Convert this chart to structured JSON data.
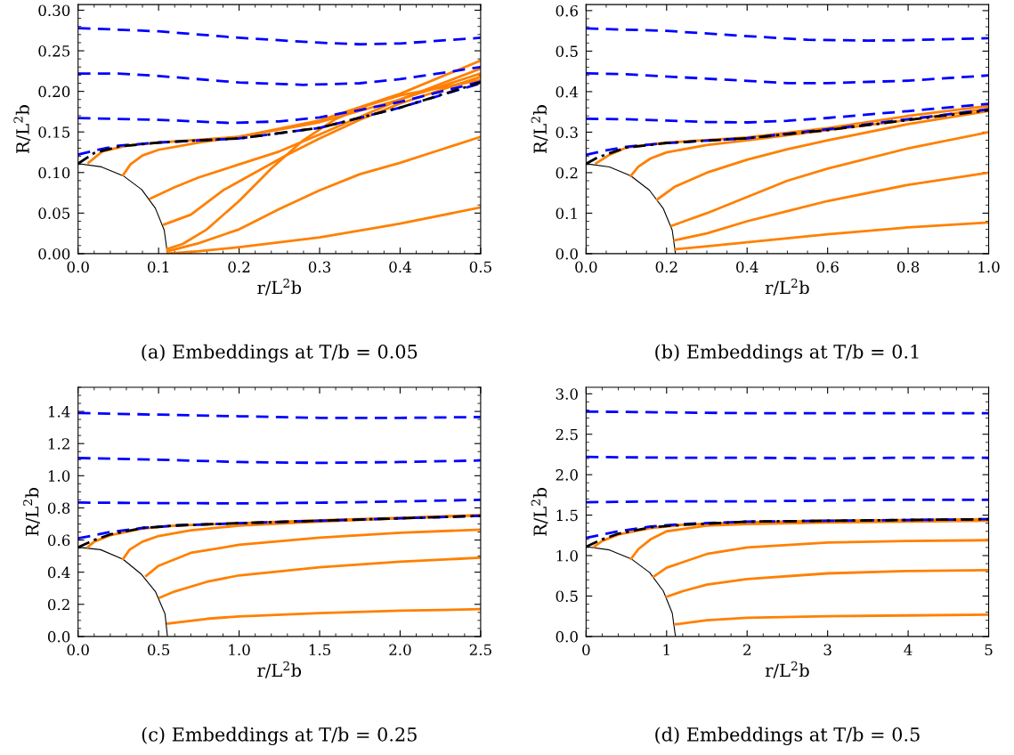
{
  "chart_data": [
    {
      "type": "line",
      "title": "(a) Embeddings at T/b = 0.05",
      "xlabel": "r/L$^{2}$b",
      "ylabel": "R/L$^{2}$b",
      "xlim": [
        0,
        0.5
      ],
      "ylim": [
        0,
        0.307
      ],
      "xticks": [
        {
          "value": 0,
          "label": "0.0"
        },
        {
          "value": 0.1,
          "label": "0.1"
        },
        {
          "value": 0.2,
          "label": "0.2"
        },
        {
          "value": 0.3,
          "label": "0.3"
        },
        {
          "value": 0.4,
          "label": "0.4"
        },
        {
          "value": 0.5,
          "label": "0.5"
        }
      ],
      "yticks": [
        {
          "value": 0,
          "label": "0.00"
        },
        {
          "value": 0.05,
          "label": "0.05"
        },
        {
          "value": 0.1,
          "label": "0.10"
        },
        {
          "value": 0.15,
          "label": "0.15"
        },
        {
          "value": 0.2,
          "label": "0.20"
        },
        {
          "value": 0.25,
          "label": "0.25"
        },
        {
          "value": 0.3,
          "label": "0.30"
        }
      ],
      "grid": false,
      "legend": false,
      "series": [
        {
          "color": "#000000",
          "line_style": "solid",
          "x": [
            0,
            0.029,
            0.056,
            0.079,
            0.096,
            0.107,
            0.111
          ],
          "values": [
            0.111,
            0.107,
            0.096,
            0.079,
            0.056,
            0.029,
            0
          ]
        },
        {
          "color": "#ff8000",
          "line_style": "solid",
          "x": [
            0.013,
            0.03,
            0.06,
            0.1,
            0.2,
            0.3,
            0.4,
            0.5
          ],
          "values": [
            0.112,
            0.126,
            0.133,
            0.137,
            0.144,
            0.162,
            0.19,
            0.222
          ]
        },
        {
          "color": "#ff8000",
          "line_style": "solid",
          "x": [
            0.056,
            0.065,
            0.08,
            0.1,
            0.15,
            0.2,
            0.3,
            0.4,
            0.5
          ],
          "values": [
            0.097,
            0.11,
            0.121,
            0.128,
            0.137,
            0.144,
            0.164,
            0.197,
            0.238
          ]
        },
        {
          "color": "#ff8000",
          "line_style": "solid",
          "x": [
            0.09,
            0.12,
            0.15,
            0.2,
            0.25,
            0.3,
            0.4,
            0.5
          ],
          "values": [
            0.068,
            0.082,
            0.094,
            0.11,
            0.126,
            0.147,
            0.19,
            0.228
          ]
        },
        {
          "color": "#ff8000",
          "line_style": "solid",
          "x": [
            0.107,
            0.14,
            0.18,
            0.22,
            0.26,
            0.3,
            0.35,
            0.4,
            0.5
          ],
          "values": [
            0.036,
            0.048,
            0.078,
            0.1,
            0.122,
            0.142,
            0.165,
            0.185,
            0.218
          ]
        },
        {
          "color": "#ff8000",
          "line_style": "solid",
          "x": [
            0.111,
            0.13,
            0.16,
            0.2,
            0.24,
            0.28,
            0.32,
            0.36,
            0.4,
            0.5
          ],
          "values": [
            0.006,
            0.012,
            0.03,
            0.065,
            0.105,
            0.14,
            0.166,
            0.183,
            0.195,
            0.214
          ]
        },
        {
          "color": "#ff8000",
          "line_style": "solid",
          "x": [
            0.111,
            0.15,
            0.2,
            0.25,
            0.3,
            0.35,
            0.4,
            0.45,
            0.5
          ],
          "values": [
            0.003,
            0.013,
            0.03,
            0.055,
            0.078,
            0.098,
            0.112,
            0.128,
            0.144
          ]
        },
        {
          "color": "#ff8000",
          "line_style": "solid",
          "x": [
            0.111,
            0.15,
            0.2,
            0.3,
            0.4,
            0.5
          ],
          "values": [
            0.0,
            0.003,
            0.008,
            0.02,
            0.037,
            0.057
          ]
        },
        {
          "color": "#0000ff",
          "line_style": "dashed",
          "x": [
            0,
            0.1,
            0.2,
            0.3,
            0.35,
            0.4,
            0.5
          ],
          "values": [
            0.278,
            0.274,
            0.266,
            0.26,
            0.258,
            0.259,
            0.266
          ]
        },
        {
          "color": "#0000ff",
          "line_style": "dashed",
          "x": [
            0,
            0.05,
            0.1,
            0.2,
            0.28,
            0.35,
            0.4,
            0.5
          ],
          "values": [
            0.222,
            0.222,
            0.219,
            0.211,
            0.208,
            0.21,
            0.215,
            0.23
          ]
        },
        {
          "color": "#0000ff",
          "line_style": "dashed",
          "x": [
            0,
            0.1,
            0.19,
            0.25,
            0.3,
            0.35,
            0.4,
            0.5
          ],
          "values": [
            0.167,
            0.165,
            0.161,
            0.163,
            0.168,
            0.177,
            0.187,
            0.212
          ]
        },
        {
          "color": "#0000ff",
          "line_style": "dashed",
          "x": [
            0,
            0.02,
            0.05,
            0.1,
            0.2,
            0.3,
            0.4,
            0.5
          ],
          "values": [
            0.122,
            0.127,
            0.133,
            0.137,
            0.142,
            0.155,
            0.18,
            0.21
          ]
        },
        {
          "color": "#000000",
          "line_style": "dashdot",
          "x": [
            0,
            0.02,
            0.05,
            0.1,
            0.2,
            0.3,
            0.4,
            0.5
          ],
          "values": [
            0.111,
            0.124,
            0.132,
            0.137,
            0.142,
            0.155,
            0.18,
            0.211
          ]
        }
      ]
    },
    {
      "type": "line",
      "title": "(b) Embeddings at T/b = 0.1",
      "xlabel": "r/L$^{2}$b",
      "ylabel": "R/L$^{2}$b",
      "xlim": [
        0,
        1.0
      ],
      "ylim": [
        0,
        0.615
      ],
      "xticks": [
        {
          "value": 0,
          "label": "0.0"
        },
        {
          "value": 0.2,
          "label": "0.2"
        },
        {
          "value": 0.4,
          "label": "0.4"
        },
        {
          "value": 0.6,
          "label": "0.6"
        },
        {
          "value": 0.8,
          "label": "0.8"
        },
        {
          "value": 1.0,
          "label": "1.0"
        }
      ],
      "yticks": [
        {
          "value": 0,
          "label": "0.0"
        },
        {
          "value": 0.1,
          "label": "0.1"
        },
        {
          "value": 0.2,
          "label": "0.2"
        },
        {
          "value": 0.3,
          "label": "0.3"
        },
        {
          "value": 0.4,
          "label": "0.4"
        },
        {
          "value": 0.5,
          "label": "0.5"
        },
        {
          "value": 0.6,
          "label": "0.6"
        }
      ],
      "grid": false,
      "legend": false,
      "series": [
        {
          "color": "#000000",
          "line_style": "solid",
          "x": [
            0,
            0.058,
            0.111,
            0.157,
            0.192,
            0.214,
            0.222
          ],
          "values": [
            0.222,
            0.214,
            0.192,
            0.157,
            0.111,
            0.058,
            0
          ]
        },
        {
          "color": "#ff8000",
          "line_style": "solid",
          "x": [
            0.025,
            0.06,
            0.1,
            0.2,
            0.4,
            0.6,
            0.8,
            1.0
          ],
          "values": [
            0.223,
            0.245,
            0.262,
            0.274,
            0.287,
            0.31,
            0.34,
            0.365
          ]
        },
        {
          "color": "#ff8000",
          "line_style": "solid",
          "x": [
            0.111,
            0.13,
            0.16,
            0.2,
            0.3,
            0.4,
            0.6,
            0.8,
            1.0
          ],
          "values": [
            0.192,
            0.215,
            0.235,
            0.25,
            0.268,
            0.28,
            0.305,
            0.33,
            0.358
          ]
        },
        {
          "color": "#ff8000",
          "line_style": "solid",
          "x": [
            0.177,
            0.22,
            0.3,
            0.4,
            0.5,
            0.6,
            0.8,
            1.0
          ],
          "values": [
            0.134,
            0.165,
            0.2,
            0.232,
            0.258,
            0.28,
            0.32,
            0.352
          ]
        },
        {
          "color": "#ff8000",
          "line_style": "solid",
          "x": [
            0.213,
            0.3,
            0.4,
            0.5,
            0.6,
            0.8,
            1.0
          ],
          "values": [
            0.069,
            0.1,
            0.14,
            0.18,
            0.21,
            0.26,
            0.3
          ]
        },
        {
          "color": "#ff8000",
          "line_style": "solid",
          "x": [
            0.22,
            0.3,
            0.4,
            0.5,
            0.6,
            0.8,
            1.0
          ],
          "values": [
            0.033,
            0.05,
            0.08,
            0.105,
            0.13,
            0.17,
            0.2
          ]
        },
        {
          "color": "#ff8000",
          "line_style": "solid",
          "x": [
            0.222,
            0.3,
            0.4,
            0.6,
            0.8,
            1.0
          ],
          "values": [
            0.011,
            0.018,
            0.028,
            0.048,
            0.065,
            0.077
          ]
        },
        {
          "color": "#0000ff",
          "line_style": "dashed",
          "x": [
            0,
            0.2,
            0.4,
            0.55,
            0.7,
            0.8,
            1.0
          ],
          "values": [
            0.556,
            0.55,
            0.537,
            0.528,
            0.526,
            0.527,
            0.532
          ]
        },
        {
          "color": "#0000ff",
          "line_style": "dashed",
          "x": [
            0,
            0.1,
            0.3,
            0.5,
            0.6,
            0.8,
            1.0
          ],
          "values": [
            0.445,
            0.443,
            0.432,
            0.421,
            0.421,
            0.427,
            0.44
          ]
        },
        {
          "color": "#0000ff",
          "line_style": "dashed",
          "x": [
            0,
            0.1,
            0.3,
            0.4,
            0.5,
            0.6,
            0.8,
            1.0
          ],
          "values": [
            0.333,
            0.332,
            0.325,
            0.324,
            0.328,
            0.335,
            0.352,
            0.37
          ]
        },
        {
          "color": "#0000ff",
          "line_style": "dashed",
          "x": [
            0,
            0.05,
            0.1,
            0.2,
            0.4,
            0.6,
            0.8,
            1.0
          ],
          "values": [
            0.244,
            0.255,
            0.264,
            0.273,
            0.285,
            0.307,
            0.332,
            0.356
          ]
        },
        {
          "color": "#000000",
          "line_style": "dashdot",
          "x": [
            0,
            0.03,
            0.1,
            0.2,
            0.4,
            0.6,
            0.8,
            1.0
          ],
          "values": [
            0.222,
            0.238,
            0.262,
            0.273,
            0.285,
            0.305,
            0.33,
            0.354
          ]
        }
      ]
    },
    {
      "type": "line",
      "title": "(c) Embeddings at T/b = 0.25",
      "xlabel": "r/L$^{2}$b",
      "ylabel": "R/L$^{2}$b",
      "xlim": [
        0,
        2.5
      ],
      "ylim": [
        0,
        1.55
      ],
      "xticks": [
        {
          "value": 0,
          "label": "0.0"
        },
        {
          "value": 0.5,
          "label": "0.5"
        },
        {
          "value": 1.0,
          "label": "1.0"
        },
        {
          "value": 1.5,
          "label": "1.5"
        },
        {
          "value": 2.0,
          "label": "2.0"
        },
        {
          "value": 2.5,
          "label": "2.5"
        }
      ],
      "yticks": [
        {
          "value": 0,
          "label": "0.0"
        },
        {
          "value": 0.2,
          "label": "0.2"
        },
        {
          "value": 0.4,
          "label": "0.4"
        },
        {
          "value": 0.6,
          "label": "0.6"
        },
        {
          "value": 0.8,
          "label": "0.8"
        },
        {
          "value": 1.0,
          "label": "1.0"
        },
        {
          "value": 1.2,
          "label": "1.2"
        },
        {
          "value": 1.4,
          "label": "1.4"
        }
      ],
      "grid": false,
      "legend": false,
      "series": [
        {
          "color": "#000000",
          "line_style": "solid",
          "x": [
            0,
            0.14,
            0.28,
            0.39,
            0.48,
            0.54,
            0.555
          ],
          "values": [
            0.555,
            0.54,
            0.48,
            0.39,
            0.28,
            0.14,
            0
          ]
        },
        {
          "color": "#ff8000",
          "line_style": "solid",
          "x": [
            0.06,
            0.1,
            0.2,
            0.4,
            0.6,
            1,
            1.5,
            2,
            2.5
          ],
          "values": [
            0.555,
            0.59,
            0.63,
            0.672,
            0.69,
            0.705,
            0.722,
            0.738,
            0.755
          ]
        },
        {
          "color": "#ff8000",
          "line_style": "solid",
          "x": [
            0.28,
            0.32,
            0.4,
            0.5,
            0.7,
            1,
            1.5,
            2,
            2.5
          ],
          "values": [
            0.483,
            0.54,
            0.59,
            0.625,
            0.66,
            0.69,
            0.715,
            0.735,
            0.755
          ]
        },
        {
          "color": "#ff8000",
          "line_style": "solid",
          "x": [
            0.423,
            0.5,
            0.7,
            1,
            1.5,
            2,
            2.5
          ],
          "values": [
            0.377,
            0.44,
            0.52,
            0.57,
            0.615,
            0.645,
            0.665
          ]
        },
        {
          "color": "#ff8000",
          "line_style": "solid",
          "x": [
            0.508,
            0.6,
            0.8,
            1,
            1.5,
            2,
            2.5
          ],
          "values": [
            0.242,
            0.28,
            0.34,
            0.38,
            0.43,
            0.465,
            0.49
          ]
        },
        {
          "color": "#ff8000",
          "line_style": "solid",
          "x": [
            0.557,
            0.8,
            1,
            1.5,
            2,
            2.5
          ],
          "values": [
            0.08,
            0.11,
            0.125,
            0.145,
            0.16,
            0.17
          ]
        },
        {
          "color": "#0000ff",
          "line_style": "dashed",
          "x": [
            0,
            0.5,
            1,
            1.5,
            2,
            2.5
          ],
          "values": [
            1.39,
            1.38,
            1.37,
            1.36,
            1.36,
            1.365
          ]
        },
        {
          "color": "#0000ff",
          "line_style": "dashed",
          "x": [
            0,
            0.5,
            1,
            1.5,
            2,
            2.5
          ],
          "values": [
            1.11,
            1.1,
            1.085,
            1.08,
            1.085,
            1.095
          ]
        },
        {
          "color": "#0000ff",
          "line_style": "dashed",
          "x": [
            0,
            0.5,
            1,
            1.5,
            2,
            2.5
          ],
          "values": [
            0.833,
            0.83,
            0.828,
            0.832,
            0.84,
            0.85
          ]
        },
        {
          "color": "#0000ff",
          "line_style": "dashed",
          "x": [
            0,
            0.1,
            0.2,
            0.4,
            0.6,
            1,
            1.5,
            2,
            2.5
          ],
          "values": [
            0.61,
            0.63,
            0.65,
            0.675,
            0.69,
            0.705,
            0.72,
            0.735,
            0.75
          ]
        },
        {
          "color": "#000000",
          "line_style": "dashdot",
          "x": [
            0,
            0.1,
            0.2,
            0.4,
            0.6,
            1,
            1.5,
            2,
            2.5
          ],
          "values": [
            0.555,
            0.6,
            0.635,
            0.675,
            0.69,
            0.705,
            0.72,
            0.735,
            0.75
          ]
        }
      ]
    },
    {
      "type": "line",
      "title": "(d) Embeddings at T/b = 0.5",
      "xlabel": "r/L$^{2}$b",
      "ylabel": "R/L$^{2}$b",
      "xlim": [
        0,
        5
      ],
      "ylim": [
        0,
        3.08
      ],
      "xticks": [
        0,
        1,
        2,
        3,
        4,
        5
      ],
      "yticks": [
        {
          "value": 0,
          "label": "0.0"
        },
        {
          "value": 0.5,
          "label": "0.5"
        },
        {
          "value": 1.0,
          "label": "1.0"
        },
        {
          "value": 1.5,
          "label": "1.5"
        },
        {
          "value": 2.0,
          "label": "2.0"
        },
        {
          "value": 2.5,
          "label": "2.5"
        },
        {
          "value": 3.0,
          "label": "3.0"
        }
      ],
      "grid": false,
      "legend": false,
      "series": [
        {
          "color": "#000000",
          "line_style": "solid",
          "x": [
            0,
            0.29,
            0.56,
            0.79,
            0.96,
            1.07,
            1.11
          ],
          "values": [
            1.11,
            1.07,
            0.96,
            0.79,
            0.56,
            0.29,
            0
          ]
        },
        {
          "color": "#ff8000",
          "line_style": "solid",
          "x": [
            0.1,
            0.2,
            0.4,
            0.8,
            1.2,
            2,
            3,
            4,
            5
          ],
          "values": [
            1.11,
            1.18,
            1.26,
            1.34,
            1.38,
            1.41,
            1.43,
            1.44,
            1.45
          ]
        },
        {
          "color": "#ff8000",
          "line_style": "solid",
          "x": [
            0.56,
            0.65,
            0.8,
            1,
            1.5,
            2,
            3,
            4,
            5
          ],
          "values": [
            0.96,
            1.08,
            1.2,
            1.3,
            1.37,
            1.39,
            1.41,
            1.42,
            1.43
          ]
        },
        {
          "color": "#ff8000",
          "line_style": "solid",
          "x": [
            0.84,
            1,
            1.5,
            2,
            3,
            4,
            5
          ],
          "values": [
            0.74,
            0.85,
            1.02,
            1.1,
            1.16,
            1.18,
            1.19
          ]
        },
        {
          "color": "#ff8000",
          "line_style": "solid",
          "x": [
            1.0,
            1.2,
            1.5,
            2,
            3,
            4,
            5
          ],
          "values": [
            0.49,
            0.56,
            0.64,
            0.71,
            0.78,
            0.81,
            0.82
          ]
        },
        {
          "color": "#ff8000",
          "line_style": "solid",
          "x": [
            1.11,
            1.5,
            2,
            3,
            4,
            5
          ],
          "values": [
            0.15,
            0.2,
            0.23,
            0.25,
            0.26,
            0.27
          ]
        },
        {
          "color": "#0000ff",
          "line_style": "dashed",
          "x": [
            0,
            1,
            2,
            3,
            4,
            5
          ],
          "values": [
            2.78,
            2.77,
            2.76,
            2.76,
            2.76,
            2.76
          ]
        },
        {
          "color": "#0000ff",
          "line_style": "dashed",
          "x": [
            0,
            1,
            2,
            3,
            4,
            5
          ],
          "values": [
            2.22,
            2.21,
            2.21,
            2.2,
            2.21,
            2.21
          ]
        },
        {
          "color": "#0000ff",
          "line_style": "dashed",
          "x": [
            0,
            1,
            2,
            3,
            4,
            5
          ],
          "values": [
            1.66,
            1.67,
            1.67,
            1.68,
            1.69,
            1.69
          ]
        },
        {
          "color": "#0000ff",
          "line_style": "dashed",
          "x": [
            0,
            0.2,
            0.4,
            0.8,
            1.2,
            2,
            3,
            4,
            5
          ],
          "values": [
            1.22,
            1.26,
            1.3,
            1.36,
            1.39,
            1.42,
            1.43,
            1.44,
            1.45
          ]
        },
        {
          "color": "#000000",
          "line_style": "dashdot",
          "x": [
            0,
            0.2,
            0.4,
            0.8,
            1.2,
            2,
            3,
            4,
            5
          ],
          "values": [
            1.11,
            1.2,
            1.27,
            1.35,
            1.38,
            1.42,
            1.43,
            1.44,
            1.45
          ]
        }
      ]
    }
  ]
}
